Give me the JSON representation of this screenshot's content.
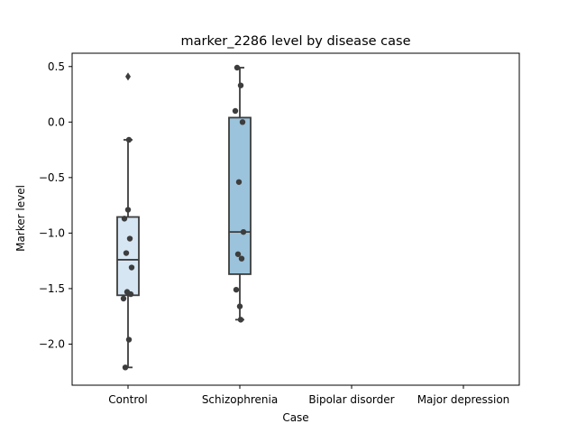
{
  "chart_data": {
    "type": "box",
    "title": "marker_2286 level by disease case",
    "xlabel": "Case",
    "ylabel": "Marker level",
    "categories": [
      "Control",
      "Schizophrenia",
      "Bipolar disorder",
      "Major depression"
    ],
    "yticks": [
      0.5,
      0.0,
      -0.5,
      -1.0,
      -1.5,
      -2.0
    ],
    "ytick_labels": [
      "0.5",
      "0.0",
      "−0.5",
      "−1.0",
      "−1.5",
      "−2.0"
    ],
    "ylim": [
      -2.37,
      0.62
    ],
    "grid": false,
    "boxes": [
      {
        "category": "Control",
        "color": "#d6e6f3",
        "whisker_low": -2.21,
        "q1": -1.56,
        "median": -1.24,
        "q3": -0.855,
        "whisker_high": -0.16,
        "outliers": [
          0.41
        ],
        "points": [
          -2.21,
          -1.96,
          -1.59,
          -1.55,
          -1.53,
          -1.31,
          -1.18,
          -1.05,
          -0.87,
          -0.79,
          -0.16
        ]
      },
      {
        "category": "Schizophrenia",
        "color": "#9bc3db",
        "whisker_low": -1.78,
        "q1": -1.37,
        "median": -0.99,
        "q3": 0.04,
        "whisker_high": 0.49,
        "outliers": [],
        "points": [
          0.49,
          0.33,
          0.1,
          0.0,
          -0.54,
          -0.99,
          -1.19,
          -1.23,
          -1.51,
          -1.66,
          -1.78
        ]
      }
    ]
  }
}
